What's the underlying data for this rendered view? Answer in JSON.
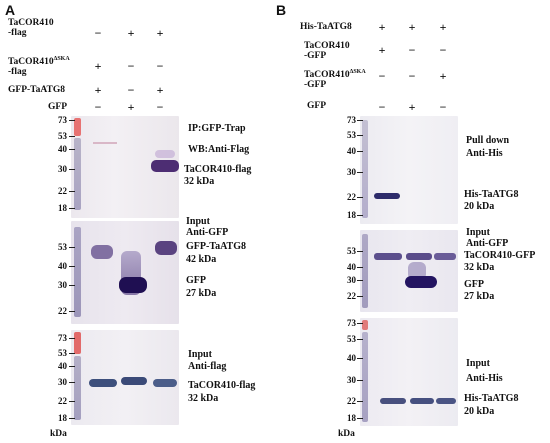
{
  "panelA": {
    "letter": "A",
    "rows": [
      {
        "label_l1": "TaCOR410",
        "label_l2": "-flag",
        "signs": [
          "−",
          "+",
          "+"
        ]
      },
      {
        "label_l1": "TaCOR410",
        "label_sup": "ΔSKA",
        "label_l2": "-flag",
        "signs": [
          "+",
          "−",
          "−"
        ]
      },
      {
        "label_l1": "GFP-TaATG8",
        "signs": [
          "+",
          "−",
          "+"
        ]
      },
      {
        "label_l1": "GFP",
        "signs": [
          "−",
          "+",
          "−"
        ]
      }
    ],
    "blot1": {
      "markers": [
        "73",
        "53",
        "40",
        "30",
        "22",
        "18"
      ],
      "ann1": "IP:GFP-Trap",
      "ann2": "WB:Anti-Flag",
      "band_label": "TaCOR410-flag",
      "band_size": "32 kDa"
    },
    "blot2": {
      "markers": [
        "53",
        "40",
        "30",
        "22"
      ],
      "ann1": "Input",
      "ann2": "Anti-GFP",
      "band1_label": "GFP-TaATG8",
      "band1_size": "42 kDa",
      "band2_label": "GFP",
      "band2_size": "27 kDa"
    },
    "blot3": {
      "markers": [
        "73",
        "53",
        "40",
        "30",
        "22",
        "18"
      ],
      "ann1": "Input",
      "ann2": "Anti-flag",
      "band_label": "TaCOR410-flag",
      "band_size": "32 kDa"
    },
    "kda": "kDa"
  },
  "panelB": {
    "letter": "B",
    "rows": [
      {
        "label_l1": "His-TaATG8",
        "signs": [
          "+",
          "+",
          "+"
        ]
      },
      {
        "label_l1": "TaCOR410",
        "label_l2": "-GFP",
        "signs": [
          "+",
          "−",
          "−"
        ]
      },
      {
        "label_l1": "TaCOR410",
        "label_sup": "ΔSKA",
        "label_l2": "-GFP",
        "signs": [
          "−",
          "−",
          "+"
        ]
      },
      {
        "label_l1": "GFP",
        "signs": [
          "−",
          "+",
          "−"
        ]
      }
    ],
    "blot1": {
      "markers": [
        "73",
        "53",
        "40",
        "30",
        "22",
        "18"
      ],
      "ann1": "Pull down",
      "ann2": "Anti-His",
      "band_label": "His-TaATG8",
      "band_size": "20 kDa"
    },
    "blot2": {
      "markers": [
        "53",
        "40",
        "30",
        "22"
      ],
      "ann1": "Input",
      "ann2": "Anti-GFP",
      "band1_label": "TaCOR410-GFP",
      "band1_size": "32 kDa",
      "band2_label": "GFP",
      "band2_size": "27 kDa"
    },
    "blot3": {
      "markers": [
        "73",
        "53",
        "40",
        "30",
        "22",
        "18"
      ],
      "ann1": "Input",
      "ann2": "Anti-His",
      "band_label": "His-TaATG8",
      "band_size": "20 kDa"
    },
    "kda": "kDa"
  }
}
